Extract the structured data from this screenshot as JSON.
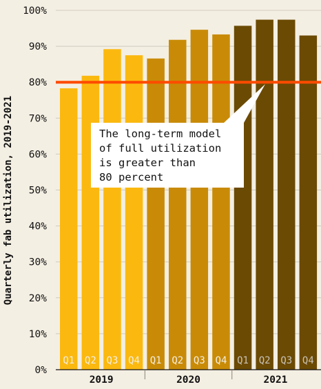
{
  "chart_data": {
    "type": "bar",
    "ylabel": "Quarterly fab utilization, 2019-2021",
    "ylim": [
      0,
      100
    ],
    "y_tick_values": [
      0,
      10,
      20,
      30,
      40,
      50,
      60,
      70,
      80,
      90,
      100
    ],
    "y_tick_labels": [
      "0%",
      "10%",
      "20%",
      "30%",
      "40%",
      "50%",
      "60%",
      "70%",
      "80%",
      "90%",
      "100%"
    ],
    "grid": true,
    "categories": [
      "Q1",
      "Q2",
      "Q3",
      "Q4",
      "Q1",
      "Q2",
      "Q3",
      "Q4",
      "Q1",
      "Q2",
      "Q3",
      "Q4"
    ],
    "groups": [
      {
        "label": "2019",
        "color": "#fbb910",
        "values": [
          78.3,
          81.8,
          89.2,
          87.5
        ]
      },
      {
        "label": "2020",
        "color": "#c98b07",
        "values": [
          86.6,
          91.8,
          94.6,
          93.3
        ]
      },
      {
        "label": "2021",
        "color": "#6b4a04",
        "values": [
          95.7,
          97.4,
          97.4,
          93.0
        ]
      }
    ],
    "reference_line": {
      "value": 80,
      "color": "#fe4b00"
    },
    "annotation": {
      "text": "The long-term model\nof full utilization\nis greater than\n80 percent"
    },
    "colors": {
      "background": "#f4efe3",
      "grid": "#cfcabf",
      "tick_label": "#111111",
      "category_label_light": "#f4efe3",
      "category_label_dark": "#c9c3b6"
    }
  }
}
